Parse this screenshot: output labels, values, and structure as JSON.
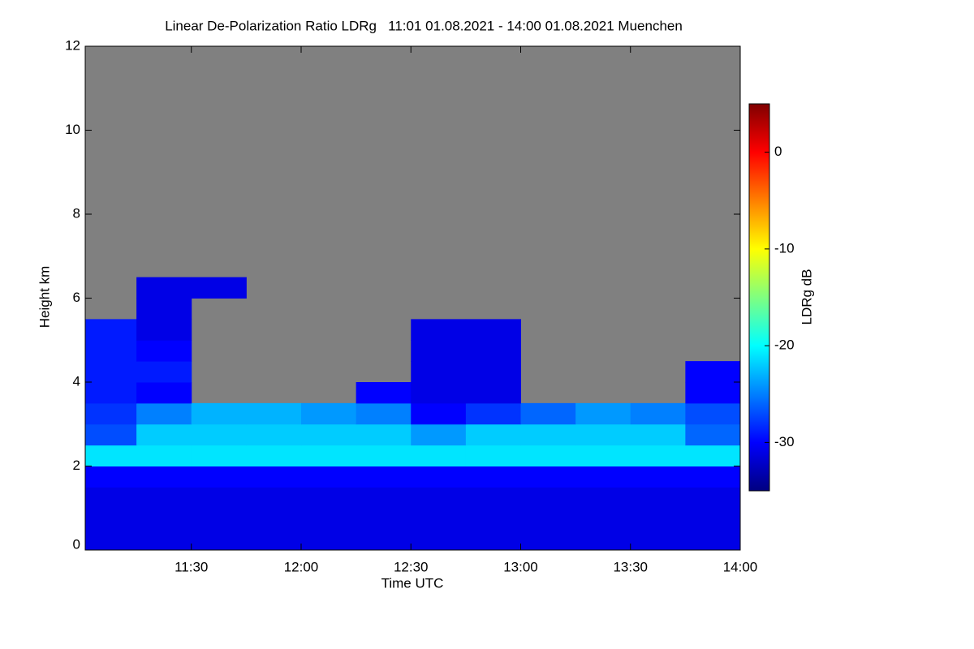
{
  "chart_data": {
    "type": "heatmap",
    "title": "Linear De-Polarization Ratio LDRg   11:01 01.08.2021 - 14:00 01.08.2021 Muenchen",
    "xlabel": "Time UTC",
    "ylabel": "Height km",
    "colorbar_label": "LDRg dB",
    "x_bins": [
      661,
      675,
      690,
      705,
      720,
      735,
      750,
      765,
      780,
      795,
      810,
      825,
      840
    ],
    "y_bins": [
      0,
      0.5,
      1,
      1.5,
      2,
      2.5,
      3,
      3.5,
      4,
      4.5,
      5,
      5.5,
      6,
      6.5
    ],
    "values": [
      [
        -31,
        -31,
        -31,
        -31,
        -31,
        -31,
        -31,
        -31,
        -31,
        -31,
        -31,
        -31
      ],
      [
        -31,
        -31,
        -31,
        -31,
        -31,
        -31,
        -31,
        -31,
        -31,
        -31,
        -31,
        -31
      ],
      [
        -31,
        -31,
        -31,
        -31,
        -31,
        -31,
        -31,
        -31,
        -31,
        -31,
        -31,
        -31
      ],
      [
        -30,
        -30,
        -30,
        -30,
        -30,
        -30,
        -30,
        -30,
        -30,
        -30,
        -30,
        -30
      ],
      [
        -21,
        -21,
        -21,
        -21,
        -21,
        -21,
        -21,
        -21,
        -21,
        -21,
        -21,
        -21
      ],
      [
        -27,
        -22,
        -22,
        -22,
        -22,
        -22,
        -24,
        -22,
        -22,
        -22,
        -22,
        -26
      ],
      [
        -28,
        -25,
        -23,
        -23,
        -24,
        -25,
        -30,
        -28,
        -26,
        -24,
        -25,
        -27
      ],
      [
        -29,
        -30,
        null,
        null,
        null,
        -30,
        -31,
        -31,
        null,
        null,
        null,
        -30
      ],
      [
        -29,
        -29,
        null,
        null,
        null,
        null,
        -31,
        -31,
        null,
        null,
        null,
        -30
      ],
      [
        -29,
        -30,
        null,
        null,
        null,
        null,
        -31,
        -31,
        null,
        null,
        null,
        null
      ],
      [
        -29,
        -31,
        null,
        null,
        null,
        null,
        -31,
        -31,
        null,
        null,
        null,
        null
      ],
      [
        null,
        -31,
        null,
        null,
        null,
        null,
        null,
        null,
        null,
        null,
        null,
        null
      ],
      [
        null,
        -31,
        -31,
        null,
        null,
        null,
        null,
        null,
        null,
        null,
        null,
        null
      ]
    ],
    "xlim": [
      661,
      840
    ],
    "xticks": [
      {
        "value": 690,
        "label": "11:30"
      },
      {
        "value": 720,
        "label": "12:00"
      },
      {
        "value": 750,
        "label": "12:30"
      },
      {
        "value": 780,
        "label": "13:00"
      },
      {
        "value": 810,
        "label": "13:30"
      },
      {
        "value": 840,
        "label": "14:00"
      }
    ],
    "ylim": [
      0,
      12
    ],
    "yticks": [
      0,
      2,
      4,
      6,
      8,
      10,
      12
    ],
    "clim": [
      -35,
      5
    ],
    "cticks": [
      0,
      -10,
      -20,
      -30
    ],
    "colormap": "jet",
    "missing_color": "#808080"
  }
}
